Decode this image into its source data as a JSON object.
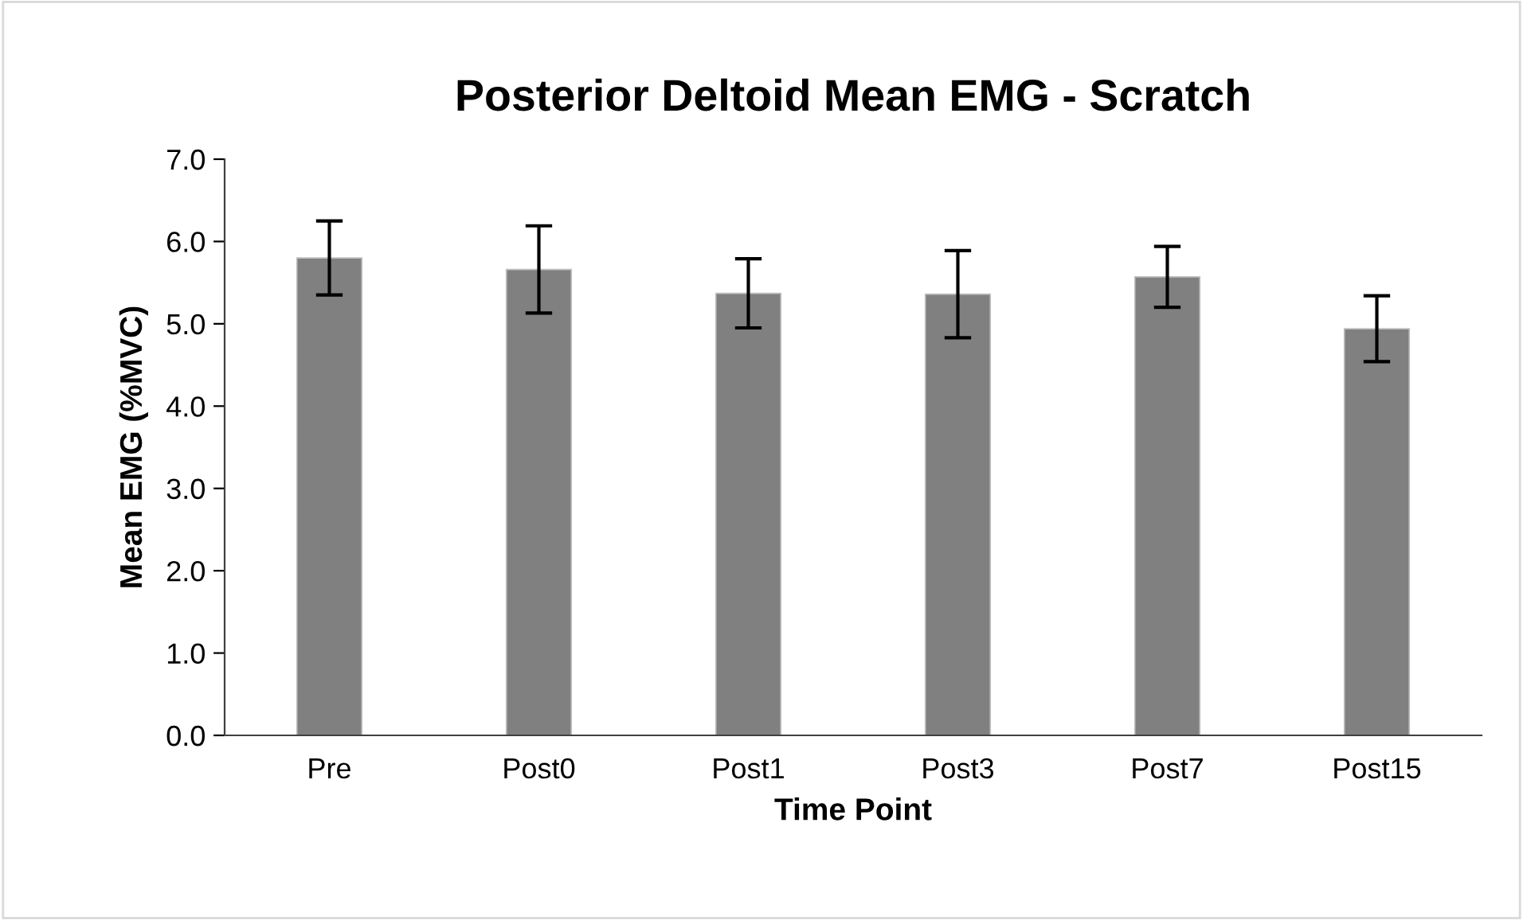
{
  "chart_data": {
    "type": "bar",
    "title": "Posterior Deltoid Mean EMG - Scratch",
    "xlabel": "Time Point",
    "ylabel": "Mean EMG (%MVC)",
    "categories": [
      "Pre",
      "Post0",
      "Post1",
      "Post3",
      "Post7",
      "Post15"
    ],
    "values": [
      5.8,
      5.66,
      5.37,
      5.36,
      5.57,
      4.94
    ],
    "errors": [
      0.45,
      0.53,
      0.42,
      0.53,
      0.37,
      0.4
    ],
    "color": "#808080",
    "ylim": [
      0,
      7
    ],
    "yticks": [
      {
        "value": 0,
        "label": "0.0"
      },
      {
        "value": 1,
        "label": "1.0"
      },
      {
        "value": 2,
        "label": "2.0"
      },
      {
        "value": 3,
        "label": "3.0"
      },
      {
        "value": 4,
        "label": "4.0"
      },
      {
        "value": 5,
        "label": "5.0"
      },
      {
        "value": 6,
        "label": "6.0"
      },
      {
        "value": 7,
        "label": "7.0"
      }
    ],
    "grid": false,
    "legend": false
  }
}
